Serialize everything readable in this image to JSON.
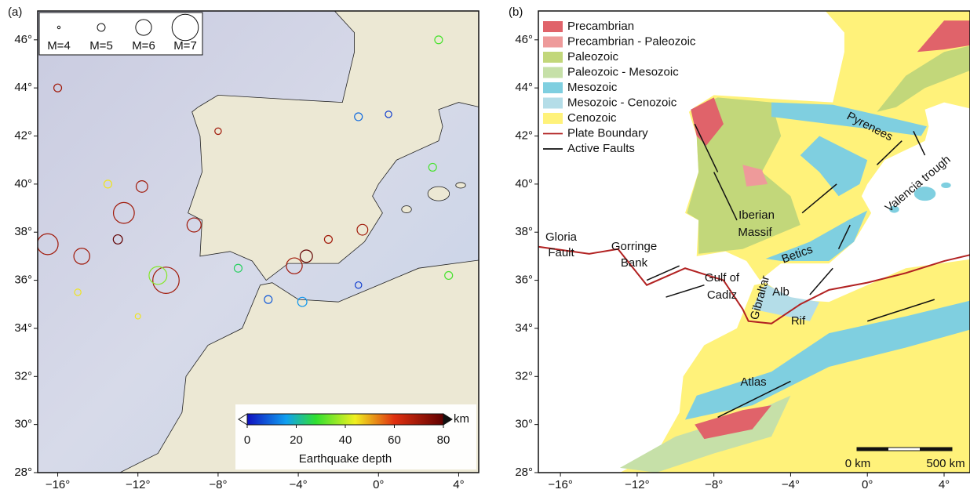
{
  "panels": [
    {
      "label": "(a)",
      "lonlim": [
        -17,
        5
      ],
      "latlim": [
        28,
        47.2
      ],
      "xticks": [
        {
          "value": -16,
          "label": "−16°"
        },
        {
          "value": -12,
          "label": "−12°"
        },
        {
          "value": -8,
          "label": "−8°"
        },
        {
          "value": -4,
          "label": "−4°"
        },
        {
          "value": 0,
          "label": "0°"
        },
        {
          "value": 4,
          "label": "4°"
        }
      ],
      "yticks": [
        {
          "value": 28,
          "label": "28°"
        },
        {
          "value": 30,
          "label": "30°"
        },
        {
          "value": 32,
          "label": "32°"
        },
        {
          "value": 34,
          "label": "34°"
        },
        {
          "value": 36,
          "label": "36°"
        },
        {
          "value": 38,
          "label": "38°"
        },
        {
          "value": 40,
          "label": "40°"
        },
        {
          "value": 42,
          "label": "42°"
        },
        {
          "value": 44,
          "label": "44°"
        },
        {
          "value": 46,
          "label": "46°"
        }
      ],
      "magnitude_legend": [
        {
          "value": 4,
          "label": "M=4"
        },
        {
          "value": 5,
          "label": "M=5"
        },
        {
          "value": 6,
          "label": "M=6"
        },
        {
          "value": 7,
          "label": "M=7"
        }
      ],
      "colorbar": {
        "title": "Earthquake depth",
        "unit": "km",
        "lim": [
          0,
          80
        ],
        "ticks": [
          0,
          20,
          40,
          60,
          80
        ]
      },
      "earthquakes": [
        {
          "lon": -16.5,
          "lat": 37.5,
          "depth": 70,
          "mag": 6.5
        },
        {
          "lon": -14.8,
          "lat": 37.0,
          "depth": 70,
          "mag": 6.0
        },
        {
          "lon": -10.6,
          "lat": 36.0,
          "depth": 70,
          "mag": 7.0
        },
        {
          "lon": -11.0,
          "lat": 36.2,
          "depth": 35,
          "mag": 6.2
        },
        {
          "lon": -13.0,
          "lat": 37.7,
          "depth": 80,
          "mag": 5.2
        },
        {
          "lon": -11.8,
          "lat": 39.9,
          "depth": 70,
          "mag": 5.5
        },
        {
          "lon": -12.7,
          "lat": 38.8,
          "depth": 70,
          "mag": 6.5
        },
        {
          "lon": -3.6,
          "lat": 37.0,
          "depth": 80,
          "mag": 5.6
        },
        {
          "lon": -4.2,
          "lat": 36.6,
          "depth": 70,
          "mag": 6.0
        },
        {
          "lon": -2.5,
          "lat": 37.7,
          "depth": 70,
          "mag": 5.0
        },
        {
          "lon": -9.2,
          "lat": 38.3,
          "depth": 70,
          "mag": 5.8
        },
        {
          "lon": -0.8,
          "lat": 38.1,
          "depth": 70,
          "mag": 5.4
        },
        {
          "lon": -1.0,
          "lat": 42.8,
          "depth": 10,
          "mag": 5.0
        },
        {
          "lon": 0.5,
          "lat": 42.9,
          "depth": 5,
          "mag": 4.8
        },
        {
          "lon": -8.0,
          "lat": 42.2,
          "depth": 70,
          "mag": 4.8
        },
        {
          "lon": 2.7,
          "lat": 40.7,
          "depth": 30,
          "mag": 5.0
        },
        {
          "lon": -16.0,
          "lat": 44.0,
          "depth": 70,
          "mag": 5.0
        },
        {
          "lon": -5.5,
          "lat": 35.2,
          "depth": 8,
          "mag": 5.0
        },
        {
          "lon": -3.8,
          "lat": 35.1,
          "depth": 15,
          "mag": 5.2
        },
        {
          "lon": -1.0,
          "lat": 35.8,
          "depth": 5,
          "mag": 4.8
        },
        {
          "lon": 3.5,
          "lat": 36.2,
          "depth": 30,
          "mag": 5.0
        },
        {
          "lon": -13.5,
          "lat": 40.0,
          "depth": 45,
          "mag": 5.0
        },
        {
          "lon": -15.0,
          "lat": 35.5,
          "depth": 45,
          "mag": 4.8
        },
        {
          "lon": 3.0,
          "lat": 46.0,
          "depth": 30,
          "mag": 5.0
        },
        {
          "lon": -7.0,
          "lat": 36.5,
          "depth": 25,
          "mag": 5.0
        },
        {
          "lon": -12.0,
          "lat": 34.5,
          "depth": 45,
          "mag": 4.6
        }
      ]
    },
    {
      "label": "(b)",
      "lonlim": [
        -17.15,
        5.35
      ],
      "latlim": [
        28,
        47.2
      ],
      "xticks": [
        {
          "value": -16,
          "label": "−16°"
        },
        {
          "value": -12,
          "label": "−12°"
        },
        {
          "value": -8,
          "label": "−8°"
        },
        {
          "value": -4,
          "label": "−4°"
        },
        {
          "value": 0,
          "label": "0°"
        },
        {
          "value": 4,
          "label": "4°"
        }
      ],
      "yticks": [
        {
          "value": 28,
          "label": "28°"
        },
        {
          "value": 30,
          "label": "30°"
        },
        {
          "value": 32,
          "label": "32°"
        },
        {
          "value": 34,
          "label": "34°"
        },
        {
          "value": 36,
          "label": "36°"
        },
        {
          "value": 38,
          "label": "38°"
        },
        {
          "value": 40,
          "label": "40°"
        },
        {
          "value": 42,
          "label": "42°"
        },
        {
          "value": 44,
          "label": "44°"
        },
        {
          "value": 46,
          "label": "46°"
        }
      ],
      "legend": [
        {
          "name": "Precambrian",
          "color": "#e0636a"
        },
        {
          "name": "Precambrian - Paleozoic",
          "color": "#ee9a9a"
        },
        {
          "name": "Paleozoic",
          "color": "#c2d77a"
        },
        {
          "name": "Paleozoic - Mesozoic",
          "color": "#c6e0a8"
        },
        {
          "name": "Mesozoic",
          "color": "#7fcfe0"
        },
        {
          "name": "Mesozoic - Cenozoic",
          "color": "#b4dde8"
        },
        {
          "name": "Cenozoic",
          "color": "#fff27a"
        },
        {
          "name": "Plate Boundary",
          "color": "#b22222",
          "kind": "line"
        },
        {
          "name": "Active Faults",
          "color": "#111111",
          "kind": "line"
        }
      ],
      "places": [
        "Gloria",
        "Fault",
        "Gorringe",
        "Bank",
        "Gulf of",
        "Cadiz",
        "Iberian",
        "Massif",
        "Betics",
        "Alb",
        "Rif",
        "Gibraltar",
        "Pyrenees",
        "Valencia trough",
        "Atlas"
      ],
      "scale_bar": [
        "0 km",
        "500 km"
      ]
    }
  ]
}
